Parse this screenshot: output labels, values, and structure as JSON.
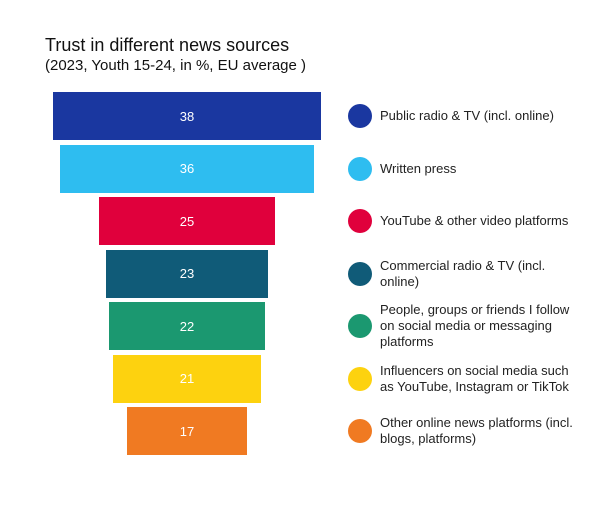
{
  "chart_data": {
    "type": "funnel",
    "title": "Trust in different news sources",
    "subtitle": "(2023, Youth 15-24, in %, EU average )",
    "categories": [
      "Public radio & TV (incl. online)",
      "Written press",
      "YouTube & other video platforms",
      "Commercial radio & TV (incl. online)",
      "People, groups or friends I follow on social media or messaging platforms",
      "Influencers on social media such as YouTube, Instagram or TikTok",
      "Other online news platforms (incl. blogs, platforms)"
    ],
    "values": [
      38,
      36,
      25,
      23,
      22,
      21,
      17
    ],
    "colors": [
      "#1a37a0",
      "#2ebdf0",
      "#e0003c",
      "#105b78",
      "#1b9870",
      "#fdd20f",
      "#f07a22"
    ],
    "legend": "right"
  }
}
